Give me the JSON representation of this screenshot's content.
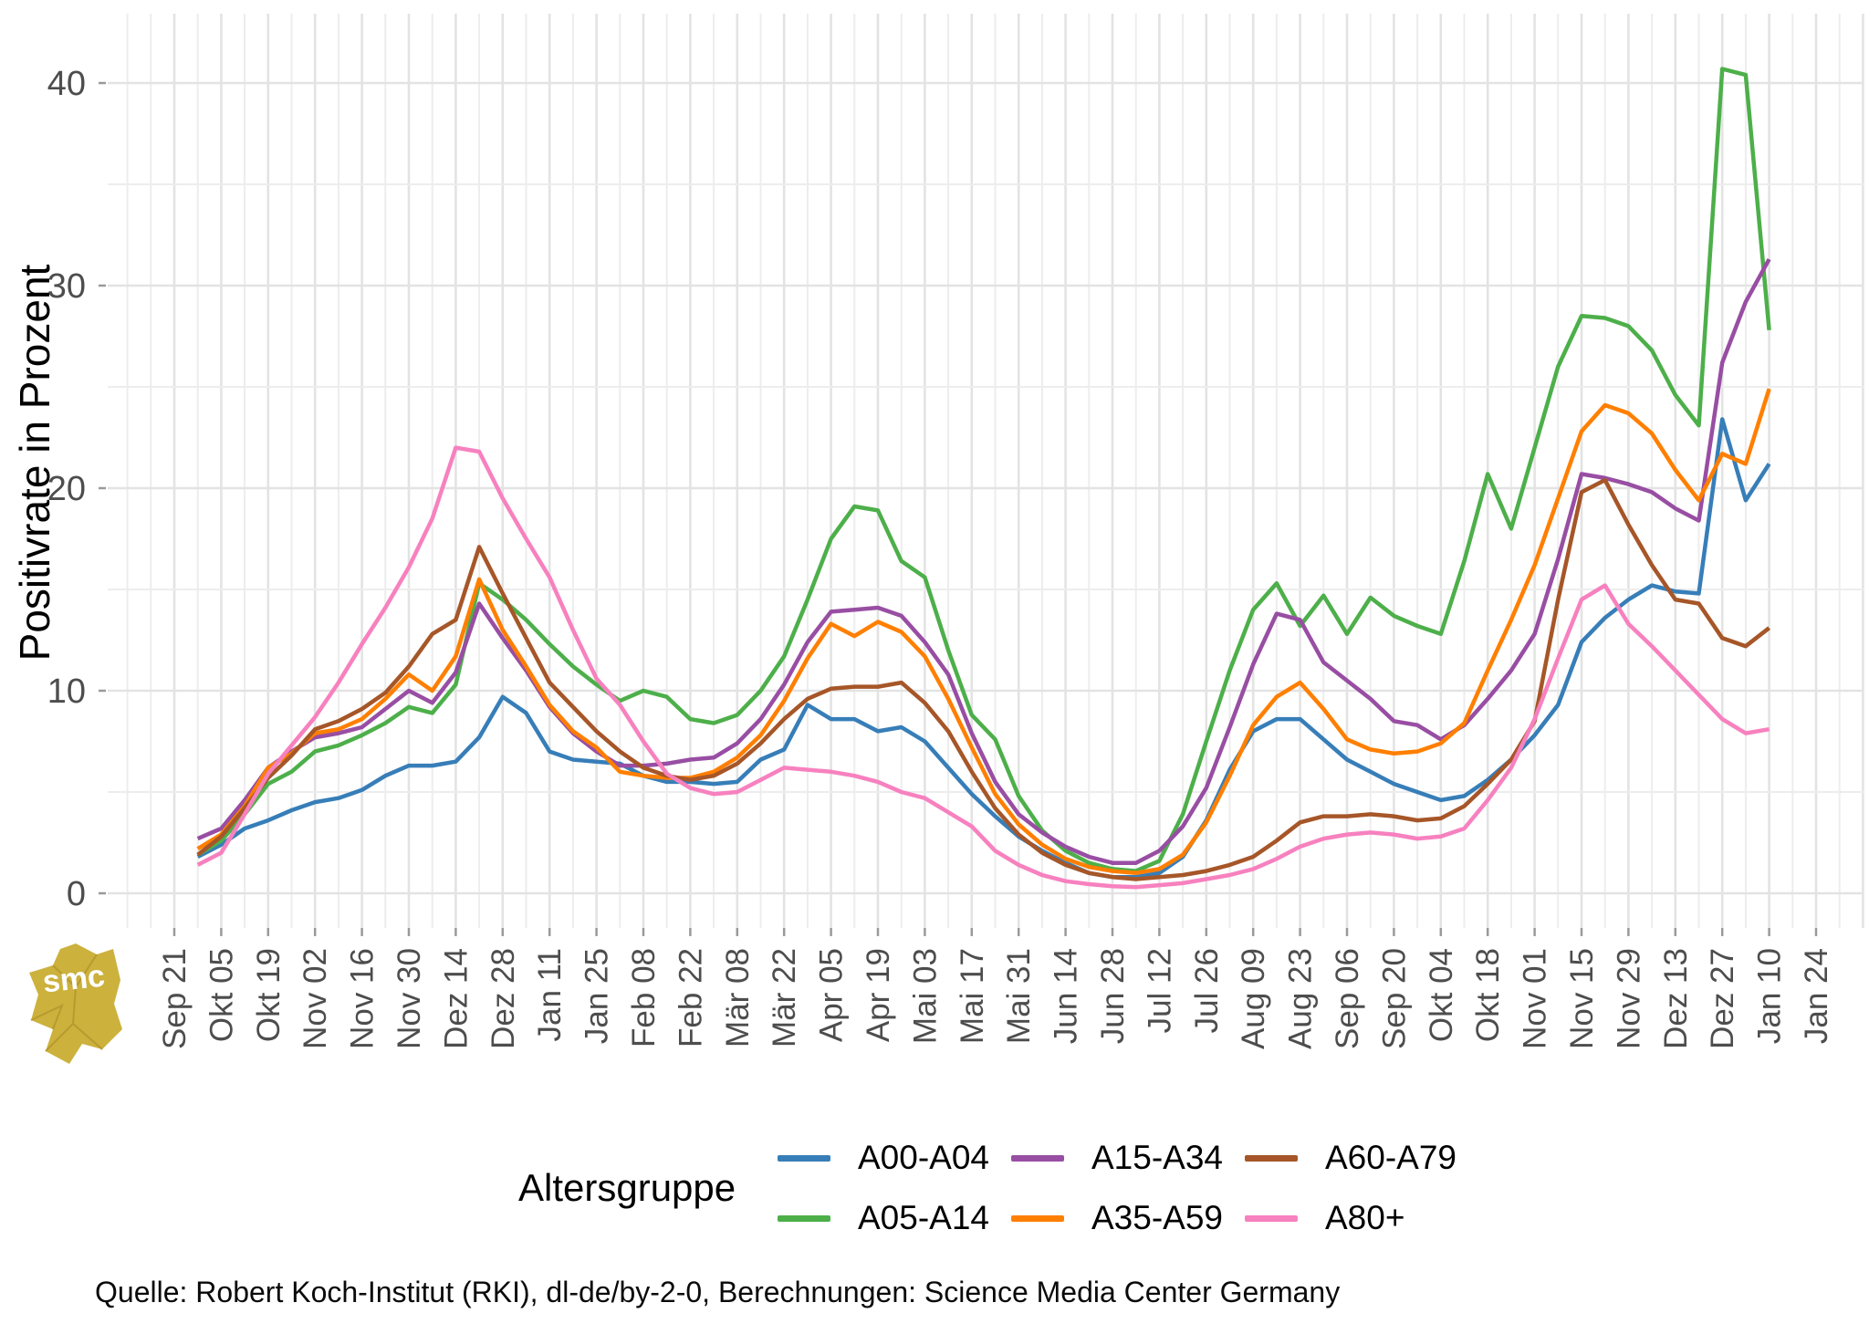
{
  "chart_data": {
    "type": "line",
    "title": "",
    "xlabel": "",
    "ylabel": "Positivrate in Prozent",
    "legend_title": "Altersgruppe",
    "legend_position": "bottom",
    "grid": true,
    "ylim": [
      0,
      43
    ],
    "y_ticks": [
      0,
      10,
      20,
      30,
      40
    ],
    "x_tick_labels": [
      "Sep 21",
      "Okt 05",
      "Okt 19",
      "Nov 02",
      "Nov 16",
      "Nov 30",
      "Dez 14",
      "Dez 28",
      "Jan 11",
      "Jan 25",
      "Feb 08",
      "Feb 22",
      "Mär 08",
      "Mär 22",
      "Apr 05",
      "Apr 19",
      "Mai 03",
      "Mai 17",
      "Mai 31",
      "Jun 14",
      "Jun 28",
      "Jul 12",
      "Jul 26",
      "Aug 09",
      "Aug 23",
      "Sep 06",
      "Sep 20",
      "Okt 04",
      "Okt 18",
      "Nov 01",
      "Nov 15",
      "Nov 29",
      "Dez 13",
      "Dez 27",
      "Jan 10",
      "Jan 24"
    ],
    "x": [
      "Sep 28",
      "Okt 05",
      "Okt 12",
      "Okt 19",
      "Okt 26",
      "Nov 02",
      "Nov 09",
      "Nov 16",
      "Nov 23",
      "Nov 30",
      "Dez 07",
      "Dez 14",
      "Dez 21",
      "Dez 28",
      "Jan 04",
      "Jan 11",
      "Jan 18",
      "Jan 25",
      "Feb 01",
      "Feb 08",
      "Feb 15",
      "Feb 22",
      "Mär 01",
      "Mär 08",
      "Mär 15",
      "Mär 22",
      "Mär 29",
      "Apr 05",
      "Apr 12",
      "Apr 19",
      "Apr 26",
      "Mai 03",
      "Mai 10",
      "Mai 17",
      "Mai 24",
      "Mai 31",
      "Jun 07",
      "Jun 14",
      "Jun 21",
      "Jun 28",
      "Jul 05",
      "Jul 12",
      "Jul 19",
      "Jul 26",
      "Aug 02",
      "Aug 09",
      "Aug 16",
      "Aug 23",
      "Aug 30",
      "Sep 06",
      "Sep 13",
      "Sep 20",
      "Sep 27",
      "Okt 04",
      "Okt 11",
      "Okt 18",
      "Okt 25",
      "Nov 01",
      "Nov 08",
      "Nov 15",
      "Nov 22",
      "Nov 29",
      "Dez 06",
      "Dez 13",
      "Dez 20",
      "Dez 27",
      "Jan 03",
      "Jan 10"
    ],
    "series": [
      {
        "name": "A00-A04",
        "color": "#377eb8",
        "values": [
          1.8,
          2.4,
          3.2,
          3.6,
          4.1,
          4.5,
          4.7,
          5.1,
          5.8,
          6.3,
          6.3,
          6.5,
          7.7,
          9.7,
          8.9,
          7.0,
          6.6,
          6.5,
          6.4,
          5.8,
          5.5,
          5.5,
          5.4,
          5.5,
          6.6,
          7.1,
          9.3,
          8.6,
          8.6,
          8.0,
          8.2,
          7.5,
          6.2,
          4.9,
          3.8,
          2.8,
          2.1,
          1.5,
          1.0,
          0.8,
          0.8,
          1.0,
          1.8,
          3.6,
          6.1,
          8.0,
          8.6,
          8.6,
          7.6,
          6.6,
          6.0,
          5.4,
          5.0,
          4.6,
          4.8,
          5.6,
          6.6,
          7.8,
          9.3,
          12.4,
          13.6,
          14.5,
          15.2,
          14.9,
          14.8,
          23.4,
          19.4,
          21.2
        ]
      },
      {
        "name": "A05-A14",
        "color": "#4daf4a",
        "values": [
          1.9,
          2.6,
          3.9,
          5.4,
          6.0,
          7.0,
          7.3,
          7.8,
          8.4,
          9.2,
          8.9,
          10.3,
          15.3,
          14.5,
          13.5,
          12.3,
          11.2,
          10.3,
          9.5,
          10.0,
          9.7,
          8.6,
          8.4,
          8.8,
          10.0,
          11.7,
          14.5,
          17.5,
          19.1,
          18.9,
          16.4,
          15.6,
          12.0,
          8.8,
          7.6,
          4.8,
          3.1,
          2.1,
          1.5,
          1.2,
          1.1,
          1.6,
          3.9,
          7.5,
          11.0,
          14.0,
          15.3,
          13.2,
          14.7,
          12.8,
          14.6,
          13.7,
          13.2,
          12.8,
          16.4,
          20.7,
          18.0,
          22.0,
          26.0,
          28.5,
          28.4,
          28.0,
          26.8,
          24.6,
          23.1,
          40.7,
          40.4,
          27.8
        ]
      },
      {
        "name": "A15-A34",
        "color": "#984ea3",
        "values": [
          2.7,
          3.2,
          4.6,
          6.2,
          7.0,
          7.7,
          7.9,
          8.2,
          9.1,
          10.0,
          9.4,
          10.9,
          14.3,
          12.6,
          11.0,
          9.2,
          7.9,
          7.0,
          6.3,
          6.3,
          6.4,
          6.6,
          6.7,
          7.4,
          8.6,
          10.3,
          12.4,
          13.9,
          14.0,
          14.1,
          13.7,
          12.4,
          10.8,
          7.9,
          5.5,
          3.9,
          3.0,
          2.3,
          1.8,
          1.5,
          1.5,
          2.1,
          3.3,
          5.2,
          8.2,
          11.3,
          13.8,
          13.5,
          11.4,
          10.5,
          9.6,
          8.5,
          8.3,
          7.6,
          8.3,
          9.6,
          11.0,
          12.8,
          16.5,
          20.7,
          20.5,
          20.2,
          19.8,
          19.0,
          18.4,
          26.2,
          29.2,
          31.3
        ]
      },
      {
        "name": "A35-A59",
        "color": "#ff7f00",
        "values": [
          2.2,
          2.9,
          4.3,
          6.2,
          6.9,
          7.9,
          8.1,
          8.6,
          9.6,
          10.8,
          10.0,
          11.7,
          15.5,
          13.0,
          11.2,
          9.3,
          8.0,
          7.2,
          6.0,
          5.8,
          5.7,
          5.7,
          6.0,
          6.7,
          7.8,
          9.5,
          11.6,
          13.3,
          12.7,
          13.4,
          12.9,
          11.7,
          9.6,
          7.2,
          4.9,
          3.4,
          2.4,
          1.7,
          1.3,
          1.1,
          1.0,
          1.2,
          1.9,
          3.5,
          5.8,
          8.3,
          9.7,
          10.4,
          9.1,
          7.6,
          7.1,
          6.9,
          7.0,
          7.4,
          8.4,
          11.0,
          13.5,
          16.2,
          19.5,
          22.8,
          24.1,
          23.7,
          22.7,
          20.9,
          19.4,
          21.7,
          21.2,
          24.9
        ]
      },
      {
        "name": "A60-A79",
        "color": "#a65628",
        "values": [
          1.9,
          2.8,
          4.2,
          5.7,
          6.8,
          8.1,
          8.5,
          9.1,
          9.9,
          11.2,
          12.8,
          13.5,
          17.1,
          14.8,
          12.6,
          10.4,
          9.2,
          8.0,
          7.0,
          6.2,
          5.8,
          5.6,
          5.8,
          6.4,
          7.4,
          8.6,
          9.6,
          10.1,
          10.2,
          10.2,
          10.4,
          9.4,
          8.0,
          6.0,
          4.2,
          2.9,
          2.0,
          1.4,
          1.0,
          0.8,
          0.7,
          0.8,
          0.9,
          1.1,
          1.4,
          1.8,
          2.6,
          3.5,
          3.8,
          3.8,
          3.9,
          3.8,
          3.6,
          3.7,
          4.3,
          5.4,
          6.6,
          8.5,
          14.5,
          19.8,
          20.4,
          18.2,
          16.2,
          14.5,
          14.3,
          12.6,
          12.2,
          13.1
        ]
      },
      {
        "name": "A80+",
        "color": "#f781bf",
        "values": [
          1.4,
          2.0,
          3.9,
          5.9,
          7.3,
          8.7,
          10.4,
          12.3,
          14.1,
          16.1,
          18.5,
          22.0,
          21.8,
          19.5,
          17.5,
          15.6,
          13.0,
          10.6,
          9.3,
          7.5,
          5.9,
          5.2,
          4.9,
          5.0,
          5.6,
          6.2,
          6.1,
          6.0,
          5.8,
          5.5,
          5.0,
          4.7,
          4.0,
          3.3,
          2.1,
          1.4,
          0.9,
          0.6,
          0.45,
          0.35,
          0.3,
          0.4,
          0.5,
          0.7,
          0.9,
          1.2,
          1.7,
          2.3,
          2.7,
          2.9,
          3.0,
          2.9,
          2.7,
          2.8,
          3.2,
          4.6,
          6.2,
          8.6,
          11.6,
          14.5,
          15.2,
          13.3,
          12.2,
          11.0,
          9.8,
          8.6,
          7.9,
          8.1
        ]
      }
    ],
    "caption": "Quelle: Robert Koch-Institut (RKI), dl-de/by-2-0, Berechnungen: Science Media Center Germany"
  },
  "logo": {
    "text": "smc",
    "color": "#ccb13d"
  }
}
